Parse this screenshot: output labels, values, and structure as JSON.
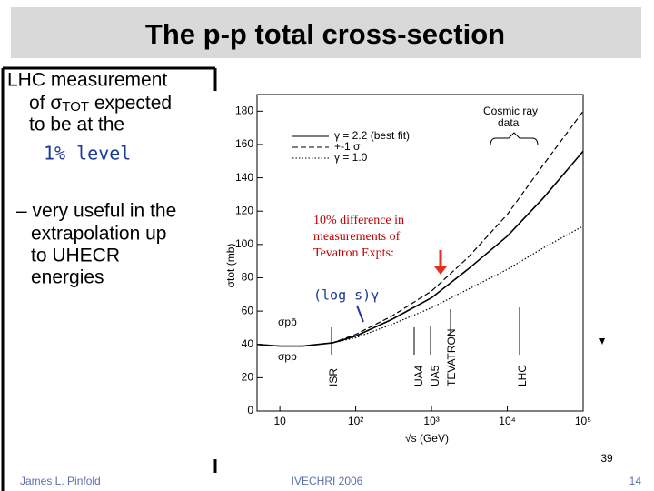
{
  "slide": {
    "title": "The p-p total cross-section",
    "bullet1": {
      "line1": "LHC measurement",
      "line2": [
        "of σ",
        "TOT",
        " expected"
      ],
      "line3": "to be at the",
      "highlight": "1% level"
    },
    "bullet2": [
      "– very useful in the",
      "extrapolation up",
      "to UHECR",
      "energies"
    ],
    "footer": {
      "author": "James L. Pinfold",
      "event": "IVECHRI 2006",
      "page": "14"
    },
    "figure_number": "39"
  },
  "chart_data": {
    "type": "line",
    "x_label": "√s (GeV)",
    "y_label": "σtot (mb)",
    "x": [
      5,
      10,
      20,
      50,
      100,
      300,
      1000,
      3000,
      10000,
      30000,
      100000
    ],
    "series": [
      {
        "name": "γ = 2.2 (best fit)",
        "color": "#000000",
        "dash": "solid",
        "values": [
          40,
          39,
          39,
          41,
          45,
          55,
          68,
          85,
          105,
          128,
          156
        ]
      },
      {
        "name": "+-1 σ",
        "color": "#000000",
        "dash": "dashed",
        "values": [
          40,
          39,
          39,
          41,
          46,
          57,
          72,
          92,
          118,
          148,
          180
        ]
      },
      {
        "name": "γ = 1.0",
        "color": "#000000",
        "dash": "dotted",
        "values": [
          40,
          39,
          39,
          41,
          44,
          52,
          62,
          73,
          85,
          98,
          111
        ]
      }
    ],
    "xlim": [
      5,
      100000
    ],
    "log_x": true,
    "xticks": [
      10,
      {
        "value": 100,
        "label": "10²"
      },
      {
        "value": 1000,
        "label": "10³"
      },
      {
        "value": 10000,
        "label": "10⁴"
      },
      {
        "value": 100000,
        "label": "10⁵"
      }
    ],
    "ylim": [
      0,
      190
    ],
    "yticks": [
      0,
      20,
      40,
      60,
      80,
      100,
      120,
      140,
      160,
      180
    ],
    "annotations": {
      "cosmic": "Cosmic ray",
      "cosmic2": "data",
      "ppbar": "σpp̄",
      "pp": "σpp",
      "isr": "ISR",
      "ua4": "UA4",
      "ua5": "UA5",
      "tev": "TEVATRON",
      "lhc": "LHC",
      "note": [
        "10% difference in",
        "measurements of",
        "Tevatron Expts:"
      ],
      "logs": "(log s)γ"
    }
  }
}
